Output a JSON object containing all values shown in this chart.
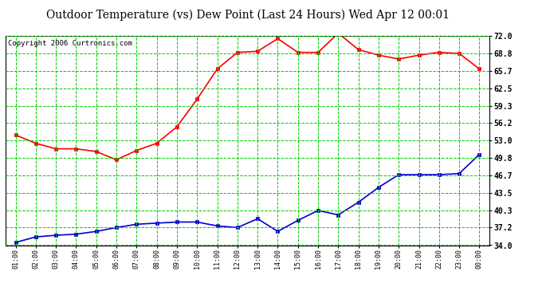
{
  "title": "Outdoor Temperature (vs) Dew Point (Last 24 Hours) Wed Apr 12 00:01",
  "copyright": "Copyright 2006 Curtronics.com",
  "x_labels": [
    "01:00",
    "02:00",
    "03:00",
    "04:00",
    "05:00",
    "06:00",
    "07:00",
    "08:00",
    "09:00",
    "10:00",
    "11:00",
    "12:00",
    "13:00",
    "14:00",
    "15:00",
    "16:00",
    "17:00",
    "18:00",
    "19:00",
    "20:00",
    "21:00",
    "22:00",
    "23:00",
    "00:00"
  ],
  "temp_data": [
    54.0,
    52.5,
    51.5,
    51.5,
    51.0,
    49.5,
    51.2,
    52.5,
    55.5,
    60.5,
    66.0,
    69.0,
    69.2,
    71.5,
    69.0,
    69.0,
    72.5,
    69.5,
    68.5,
    67.8,
    68.5,
    69.0,
    68.8,
    66.0
  ],
  "dew_data": [
    34.5,
    35.5,
    35.8,
    36.0,
    36.5,
    37.2,
    37.8,
    38.0,
    38.2,
    38.2,
    37.5,
    37.2,
    38.8,
    36.5,
    38.5,
    40.3,
    39.5,
    41.8,
    44.5,
    46.8,
    46.8,
    46.8,
    47.0,
    50.5
  ],
  "y_ticks": [
    34.0,
    37.2,
    40.3,
    43.5,
    46.7,
    49.8,
    53.0,
    56.2,
    59.3,
    62.5,
    65.7,
    68.8,
    72.0
  ],
  "temp_color": "#ff0000",
  "dew_color": "#0000cc",
  "bg_color": "#ffffff",
  "grid_color": "#00cc00",
  "title_fontsize": 10,
  "copyright_fontsize": 6.5
}
